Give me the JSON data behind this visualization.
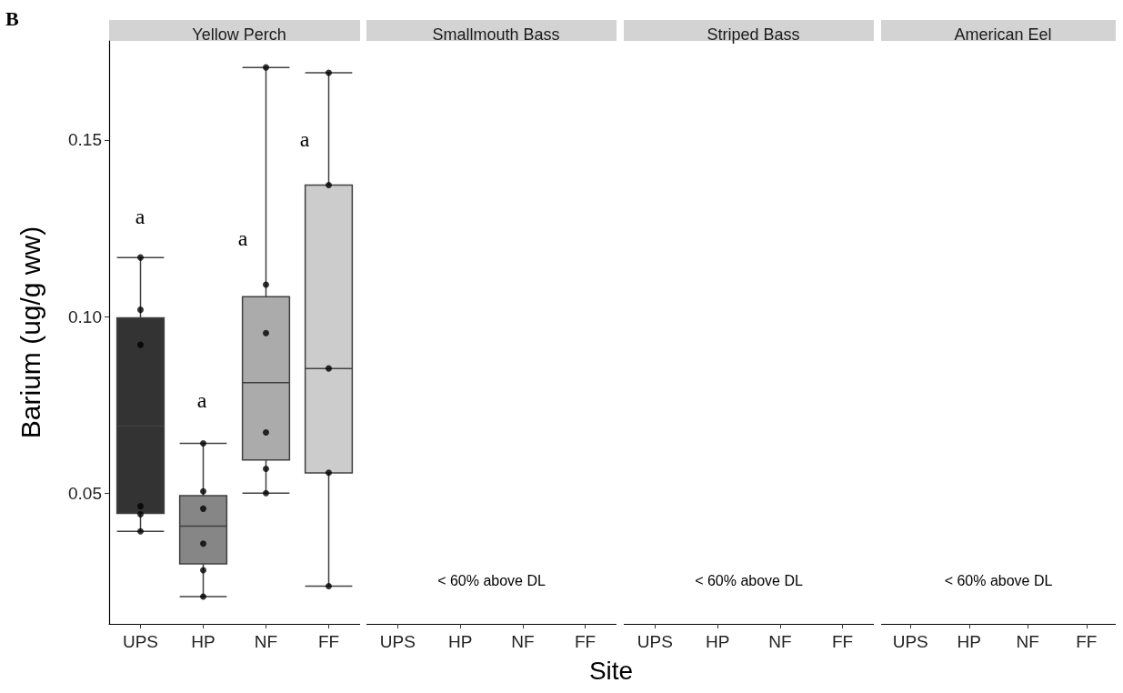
{
  "chart_data": [
    {
      "type": "box",
      "title": "Yellow Perch",
      "ylabel": "Barium (ug/g ww)",
      "categories": [
        "UPS",
        "HP",
        "NF",
        "FF"
      ],
      "colors": [
        "#333333",
        "#868686",
        "#ababab",
        "#cccccc"
      ],
      "boxes": [
        {
          "low": 0.0392,
          "q1": 0.0443,
          "median": 0.069,
          "q3": 0.0996,
          "high": 0.1167
        },
        {
          "low": 0.0207,
          "q1": 0.03,
          "median": 0.0407,
          "q3": 0.0493,
          "high": 0.0641
        },
        {
          "low": 0.05,
          "q1": 0.0594,
          "median": 0.0813,
          "q3": 0.1056,
          "high": 0.1705
        },
        {
          "low": 0.0237,
          "q1": 0.0557,
          "median": 0.0853,
          "q3": 0.1372,
          "high": 0.169
        }
      ],
      "series": [
        {
          "type": "scatter",
          "color": "#000000",
          "x": [
            "UPS",
            "UPS",
            "UPS",
            "UPS",
            "UPS",
            "UPS",
            "HP",
            "HP",
            "HP",
            "HP",
            "HP",
            "HP",
            "NF",
            "NF",
            "NF",
            "NF",
            "NF",
            "NF",
            "FF",
            "FF",
            "FF",
            "FF",
            "FF"
          ],
          "values": [
            0.1167,
            0.1019,
            0.092,
            0.0463,
            0.044,
            0.0392,
            0.0641,
            0.0505,
            0.0456,
            0.0357,
            0.0282,
            0.0207,
            0.1705,
            0.109,
            0.0953,
            0.0672,
            0.0569,
            0.05,
            0.169,
            0.1372,
            0.0853,
            0.0558,
            0.0237
          ]
        }
      ],
      "annotations": [
        "B",
        "a",
        "a",
        "a",
        "a",
        "Site"
      ],
      "ylim": [
        0.013,
        0.178
      ],
      "yticks": [
        0.05,
        {
          "value": 0.1,
          "label": "0.10"
        },
        0.15
      ],
      "grid": false
    },
    {
      "type": "other",
      "title": "Smallmouth Bass",
      "categories": [
        "UPS",
        "HP",
        "NF",
        "FF"
      ],
      "annotations": [
        "< 60% above DL"
      ]
    },
    {
      "type": "other",
      "title": "Striped Bass",
      "categories": [
        "UPS",
        "HP",
        "NF",
        "FF"
      ],
      "annotations": [
        "< 60% above DL"
      ]
    },
    {
      "type": "other",
      "title": "American Eel",
      "categories": [
        "UPS",
        "HP",
        "NF",
        "FF"
      ],
      "annotations": [
        "< 60% above DL"
      ]
    }
  ]
}
